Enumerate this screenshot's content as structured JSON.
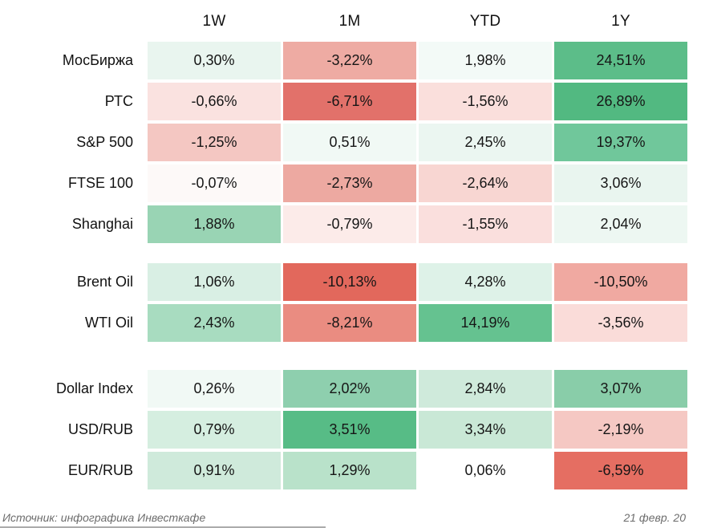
{
  "header": {
    "columns": [
      "1W",
      "1M",
      "YTD",
      "1Y"
    ]
  },
  "chart_data": {
    "type": "heatmap",
    "columns": [
      "1W",
      "1M",
      "YTD",
      "1Y"
    ],
    "value_unit": "percent",
    "palette": {
      "strong_positive": "#57bc86",
      "neutral": "#ffffff",
      "strong_negative": "#e2685c"
    },
    "sections": [
      {
        "name": "equity-indices",
        "rows": [
          {
            "label": "МосБиржа",
            "values": [
              "0,30%",
              "-3,22%",
              "1,98%",
              "24,51%"
            ],
            "numeric": [
              0.3,
              -3.22,
              1.98,
              24.51
            ],
            "colors": [
              "#e9f5ef",
              "#eeaba3",
              "#f3faf7",
              "#5cbd89"
            ]
          },
          {
            "label": "РТС",
            "values": [
              "-0,66%",
              "-6,71%",
              "-1,56%",
              "26,89%"
            ],
            "numeric": [
              -0.66,
              -6.71,
              -1.56,
              26.89
            ],
            "colors": [
              "#fae2e0",
              "#e2716a",
              "#fadfdc",
              "#52b981"
            ]
          },
          {
            "label": "S&P 500",
            "values": [
              "-1,25%",
              "0,51%",
              "2,45%",
              "19,37%"
            ],
            "numeric": [
              -1.25,
              0.51,
              2.45,
              19.37
            ],
            "colors": [
              "#f4c7c2",
              "#f1f9f5",
              "#ebf6f1",
              "#70c79b"
            ]
          },
          {
            "label": "FTSE 100",
            "values": [
              "-0,07%",
              "-2,73%",
              "-2,64%",
              "3,06%"
            ],
            "numeric": [
              -0.07,
              -2.73,
              -2.64,
              3.06
            ],
            "colors": [
              "#fdf9f8",
              "#eda9a1",
              "#f8d6d2",
              "#e9f5ef"
            ]
          },
          {
            "label": "Shanghai",
            "values": [
              "1,88%",
              "-0,79%",
              "-1,55%",
              "2,04%"
            ],
            "numeric": [
              1.88,
              -0.79,
              -1.55,
              2.04
            ],
            "colors": [
              "#99d4b4",
              "#fcebe9",
              "#fadfdd",
              "#edf7f2"
            ]
          }
        ]
      },
      {
        "name": "oil",
        "rows": [
          {
            "label": "Brent Oil",
            "values": [
              "1,06%",
              "-10,13%",
              "4,28%",
              "-10,50%"
            ],
            "numeric": [
              1.06,
              -10.13,
              4.28,
              -10.5
            ],
            "colors": [
              "#d9efe4",
              "#e2685c",
              "#def2e8",
              "#f0a9a1"
            ]
          },
          {
            "label": "WTI Oil",
            "values": [
              "2,43%",
              "-8,21%",
              "14,19%",
              "-3,56%"
            ],
            "numeric": [
              2.43,
              -8.21,
              14.19,
              -3.56
            ],
            "colors": [
              "#a8dcc0",
              "#ea8c81",
              "#65c290",
              "#fadcd9"
            ]
          }
        ]
      },
      {
        "name": "currencies",
        "rows": [
          {
            "label": "Dollar Index",
            "values": [
              "0,26%",
              "2,02%",
              "2,84%",
              "3,07%"
            ],
            "numeric": [
              0.26,
              2.02,
              2.84,
              3.07
            ],
            "colors": [
              "#f1f9f5",
              "#8ecfae",
              "#cfeadb",
              "#89cda9"
            ]
          },
          {
            "label": "USD/RUB",
            "values": [
              "0,79%",
              "3,51%",
              "3,34%",
              "-2,19%"
            ],
            "numeric": [
              0.79,
              3.51,
              3.34,
              -2.19
            ],
            "colors": [
              "#d5eee0",
              "#57bc86",
              "#c9e8d6",
              "#f5c8c3"
            ]
          },
          {
            "label": "EUR/RUB",
            "values": [
              "0,91%",
              "1,29%",
              "0,06%",
              "-6,59%"
            ],
            "numeric": [
              0.91,
              1.29,
              0.06,
              -6.59
            ],
            "colors": [
              "#cfeadb",
              "#b9e2ca",
              "#ffffff",
              "#e56e62"
            ]
          }
        ]
      }
    ]
  },
  "footer": {
    "source": "Источник: инфографика Инвесткафе",
    "date": "21 февр. 20"
  }
}
